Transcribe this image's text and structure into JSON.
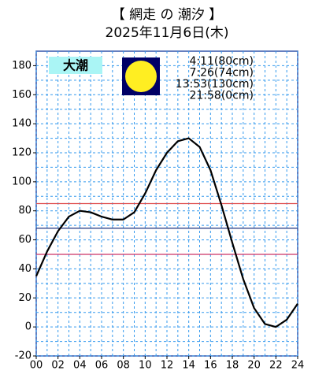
{
  "chart_data": {
    "type": "line",
    "title": "【 網走 の 潮汐 】",
    "subtitle": "2025年11月6日(木)",
    "tide_label": "大潮",
    "tide_times": [
      "4:11(80cm)",
      "7:26(74cm)",
      "13:53(130cm)",
      "21:58(0cm)"
    ],
    "x": [
      0,
      1,
      2,
      3,
      4,
      5,
      6,
      7,
      8,
      9,
      10,
      11,
      12,
      13,
      14,
      15,
      16,
      17,
      18,
      19,
      20,
      21,
      22,
      23,
      24
    ],
    "series": [
      {
        "color": "#000000",
        "values": [
          35,
          52,
          66,
          76,
          80,
          79,
          76,
          74,
          74,
          79,
          92,
          108,
          120,
          128,
          130,
          124,
          108,
          84,
          58,
          33,
          13,
          2,
          0,
          5,
          16
        ]
      }
    ],
    "xlim": [
      0,
      24
    ],
    "xticks": [
      {
        "value": 0,
        "label": "00"
      },
      {
        "value": 2,
        "label": "02"
      },
      {
        "value": 4,
        "label": "04"
      },
      {
        "value": 6,
        "label": "06"
      },
      {
        "value": 8,
        "label": "08"
      },
      10,
      12,
      14,
      16,
      18,
      20,
      22,
      24
    ],
    "ylim": [
      -20,
      190
    ],
    "yticks": [
      -20,
      0,
      20,
      40,
      60,
      80,
      100,
      120,
      140,
      160,
      180
    ],
    "grid": true,
    "reference_lines": [
      {
        "value": 85,
        "color": "#e05050"
      },
      {
        "value": 68,
        "color": "#334488"
      },
      {
        "value": 50,
        "color": "#cc3366"
      }
    ]
  }
}
